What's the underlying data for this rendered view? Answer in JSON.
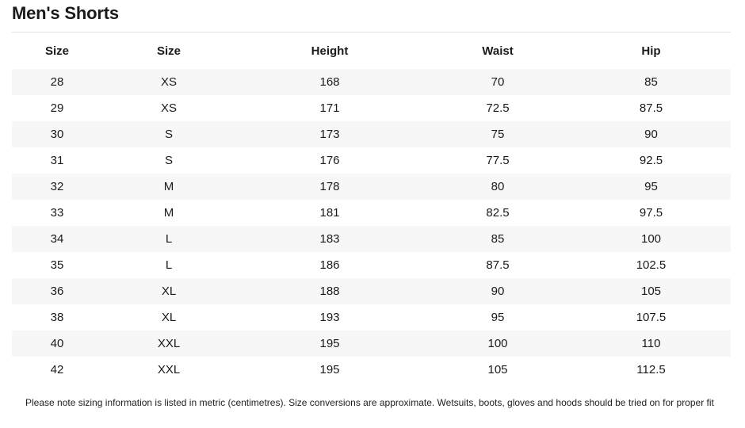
{
  "title": "Men's Shorts",
  "table": {
    "headers": [
      "Size",
      "Size",
      "Height",
      "Waist",
      "Hip"
    ],
    "rows": [
      [
        "28",
        "XS",
        "168",
        "70",
        "85"
      ],
      [
        "29",
        "XS",
        "171",
        "72.5",
        "87.5"
      ],
      [
        "30",
        "S",
        "173",
        "75",
        "90"
      ],
      [
        "31",
        "S",
        "176",
        "77.5",
        "92.5"
      ],
      [
        "32",
        "M",
        "178",
        "80",
        "95"
      ],
      [
        "33",
        "M",
        "181",
        "82.5",
        "97.5"
      ],
      [
        "34",
        "L",
        "183",
        "85",
        "100"
      ],
      [
        "35",
        "L",
        "186",
        "87.5",
        "102.5"
      ],
      [
        "36",
        "XL",
        "188",
        "90",
        "105"
      ],
      [
        "38",
        "XL",
        "193",
        "95",
        "107.5"
      ],
      [
        "40",
        "XXL",
        "195",
        "100",
        "110"
      ],
      [
        "42",
        "XXL",
        "195",
        "105",
        "112.5"
      ]
    ]
  },
  "note": "Please note sizing information is listed in metric (centimetres). Size conversions are approximate. Wetsuits, boots, gloves and hoods should be tried on for proper fit"
}
